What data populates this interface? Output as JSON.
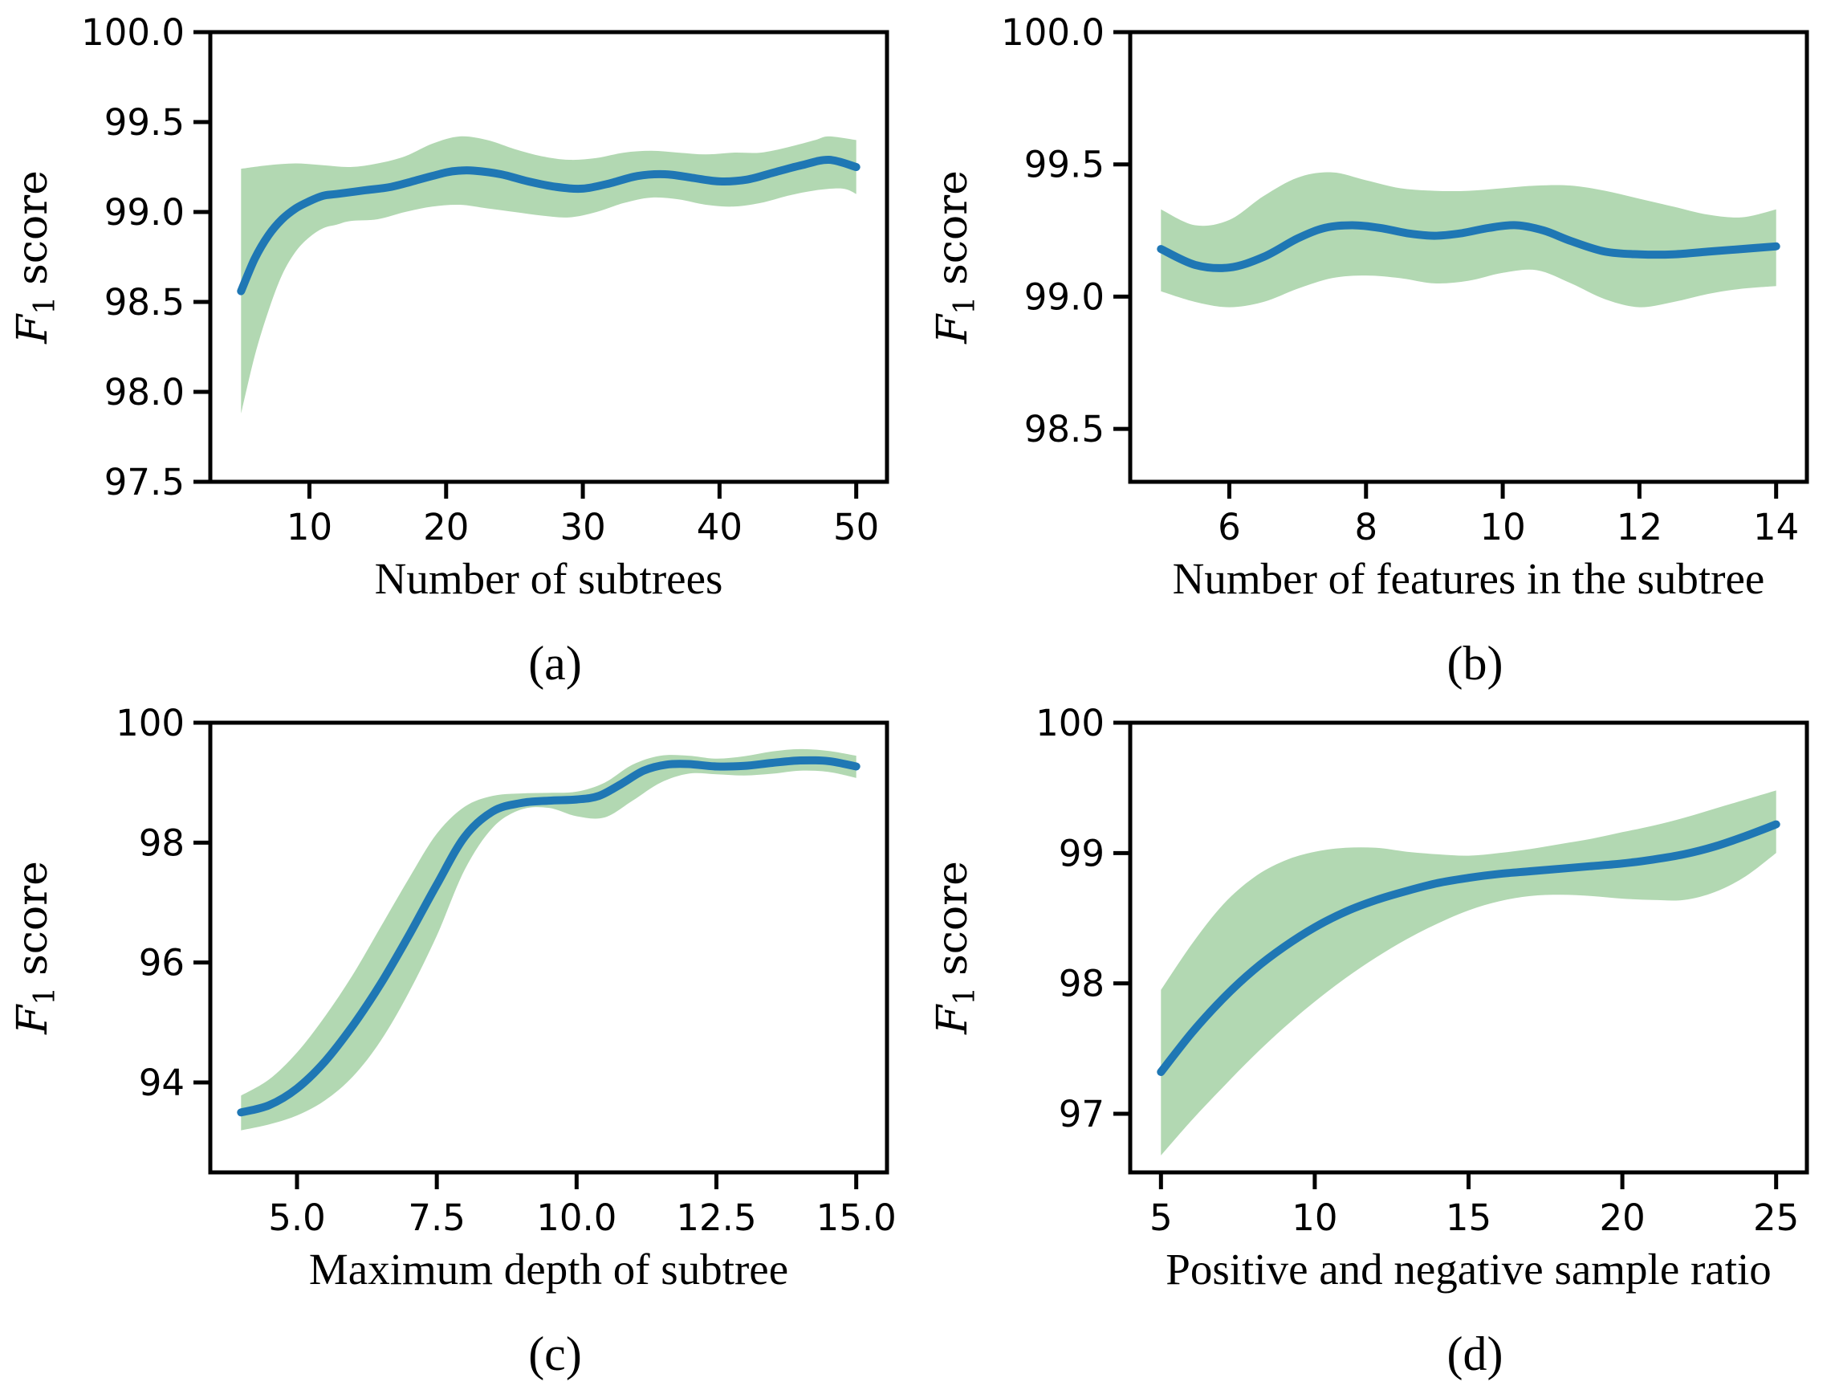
{
  "styles": {
    "line_color": "#1f77b4",
    "band_color": "#b2d8b2",
    "axis_color": "#000000",
    "background": "#ffffff"
  },
  "ylabel_parts": {
    "f": "F",
    "sub": "1",
    "rest": "score"
  },
  "chart_data": [
    {
      "type": "line",
      "panel": "a",
      "caption": "(a)",
      "xlabel": "Number of subtrees",
      "ylabel": "F1 score",
      "legend": "none",
      "grid": false,
      "xlim": [
        2.75,
        52.25
      ],
      "ylim": [
        97.5,
        100.0
      ],
      "xticks": [
        {
          "v": 10,
          "label": "10"
        },
        {
          "v": 20,
          "label": "20"
        },
        {
          "v": 30,
          "label": "30"
        },
        {
          "v": 40,
          "label": "40"
        },
        {
          "v": 50,
          "label": "50"
        }
      ],
      "yticks": [
        {
          "v": 100.0,
          "label": "100.0"
        },
        {
          "v": 99.5,
          "label": "99.5"
        },
        {
          "v": 99.0,
          "label": "99.0"
        },
        {
          "v": 98.5,
          "label": "98.5"
        },
        {
          "v": 98.0,
          "label": "98.0"
        },
        {
          "v": 97.5,
          "label": "97.5"
        }
      ],
      "line": {
        "x": [
          5,
          6,
          7,
          8,
          9,
          10,
          11,
          12,
          14,
          16,
          18,
          20,
          21,
          22,
          24,
          26,
          28,
          30,
          32,
          34,
          36,
          38,
          40,
          42,
          44,
          46,
          48,
          50
        ],
        "y": [
          98.56,
          98.74,
          98.87,
          98.96,
          99.02,
          99.06,
          99.09,
          99.1,
          99.12,
          99.14,
          99.18,
          99.22,
          99.23,
          99.23,
          99.21,
          99.17,
          99.14,
          99.13,
          99.16,
          99.2,
          99.21,
          99.19,
          99.17,
          99.18,
          99.22,
          99.26,
          99.29,
          99.25
        ]
      },
      "band_upper": {
        "x": [
          5,
          7,
          9,
          11,
          13,
          15,
          17,
          19,
          21,
          23,
          25,
          27,
          29,
          31,
          33,
          35,
          37,
          39,
          41,
          43,
          45,
          47,
          48,
          50
        ],
        "y": [
          99.24,
          99.26,
          99.27,
          99.26,
          99.25,
          99.27,
          99.31,
          99.38,
          99.42,
          99.4,
          99.35,
          99.31,
          99.29,
          99.3,
          99.33,
          99.34,
          99.33,
          99.32,
          99.33,
          99.33,
          99.36,
          99.4,
          99.42,
          99.4
        ]
      },
      "band_lower": {
        "x": [
          5,
          6,
          7,
          8,
          9,
          10,
          11,
          12,
          13,
          15,
          17,
          19,
          21,
          23,
          25,
          27,
          29,
          31,
          33,
          35,
          37,
          39,
          41,
          43,
          45,
          47,
          49,
          50
        ],
        "y": [
          97.88,
          98.2,
          98.45,
          98.65,
          98.78,
          98.86,
          98.91,
          98.93,
          98.95,
          98.96,
          99.0,
          99.03,
          99.04,
          99.02,
          99.0,
          98.98,
          98.97,
          99.0,
          99.05,
          99.08,
          99.07,
          99.04,
          99.03,
          99.05,
          99.09,
          99.12,
          99.13,
          99.1
        ]
      }
    },
    {
      "type": "line",
      "panel": "b",
      "caption": "(b)",
      "xlabel": "Number of features in the subtree",
      "ylabel": "F1 score",
      "legend": "none",
      "grid": false,
      "xlim": [
        4.55,
        14.45
      ],
      "ylim": [
        98.3,
        100.0
      ],
      "xticks": [
        {
          "v": 6,
          "label": "6"
        },
        {
          "v": 8,
          "label": "8"
        },
        {
          "v": 10,
          "label": "10"
        },
        {
          "v": 12,
          "label": "12"
        },
        {
          "v": 14,
          "label": "14"
        }
      ],
      "yticks": [
        {
          "v": 100.0,
          "label": "100.0"
        },
        {
          "v": 99.5,
          "label": "99.5"
        },
        {
          "v": 99.0,
          "label": "99.0"
        },
        {
          "v": 98.5,
          "label": "98.5"
        }
      ],
      "line": {
        "x": [
          5,
          5.5,
          6,
          6.5,
          7,
          7.4,
          7.8,
          8.2,
          8.6,
          9,
          9.4,
          9.8,
          10.2,
          10.6,
          11,
          11.5,
          12,
          12.5,
          13,
          13.5,
          14
        ],
        "y": [
          99.18,
          99.12,
          99.11,
          99.15,
          99.22,
          99.26,
          99.27,
          99.26,
          99.24,
          99.23,
          99.24,
          99.26,
          99.27,
          99.25,
          99.21,
          99.17,
          99.16,
          99.16,
          99.17,
          99.18,
          99.19
        ]
      },
      "band_upper": {
        "x": [
          5,
          5.5,
          6,
          6.5,
          7,
          7.5,
          8,
          8.5,
          9,
          9.5,
          10,
          10.5,
          11,
          11.5,
          12,
          12.5,
          13,
          13.5,
          14
        ],
        "y": [
          99.33,
          99.27,
          99.29,
          99.38,
          99.45,
          99.47,
          99.44,
          99.41,
          99.4,
          99.4,
          99.41,
          99.42,
          99.42,
          99.4,
          99.37,
          99.34,
          99.31,
          99.3,
          99.33
        ]
      },
      "band_lower": {
        "x": [
          5,
          5.5,
          6,
          6.5,
          7,
          7.5,
          8,
          8.5,
          9,
          9.5,
          10,
          10.5,
          11,
          11.5,
          12,
          12.5,
          13,
          13.5,
          14
        ],
        "y": [
          99.02,
          98.98,
          98.96,
          98.98,
          99.03,
          99.07,
          99.08,
          99.07,
          99.05,
          99.06,
          99.09,
          99.1,
          99.05,
          98.99,
          98.96,
          98.98,
          99.01,
          99.03,
          99.04
        ]
      }
    },
    {
      "type": "line",
      "panel": "c",
      "caption": "(c)",
      "xlabel": "Maximum depth of subtree",
      "ylabel": "F1 score",
      "legend": "none",
      "grid": false,
      "xlim": [
        3.45,
        15.55
      ],
      "ylim": [
        92.5,
        100.0
      ],
      "xticks": [
        {
          "v": 5,
          "label": "5.0"
        },
        {
          "v": 7.5,
          "label": "7.5"
        },
        {
          "v": 10,
          "label": "10.0"
        },
        {
          "v": 12.5,
          "label": "12.5"
        },
        {
          "v": 15,
          "label": "15.0"
        }
      ],
      "yticks": [
        {
          "v": 100,
          "label": "100"
        },
        {
          "v": 98,
          "label": "98"
        },
        {
          "v": 96,
          "label": "96"
        },
        {
          "v": 94,
          "label": "94"
        }
      ],
      "line": {
        "x": [
          4,
          4.5,
          5,
          5.5,
          6,
          6.5,
          7,
          7.5,
          8,
          8.5,
          9,
          9.5,
          10,
          10.4,
          10.8,
          11.2,
          11.6,
          12,
          12.5,
          13,
          13.5,
          14,
          14.5,
          15
        ],
        "y": [
          93.5,
          93.62,
          93.9,
          94.35,
          94.95,
          95.65,
          96.45,
          97.3,
          98.1,
          98.52,
          98.66,
          98.7,
          98.72,
          98.78,
          98.98,
          99.2,
          99.3,
          99.31,
          99.27,
          99.28,
          99.33,
          99.37,
          99.36,
          99.27
        ]
      },
      "band_upper": {
        "x": [
          4,
          4.5,
          5,
          5.5,
          6,
          6.5,
          7,
          7.5,
          8,
          8.5,
          9,
          9.5,
          10,
          10.5,
          11,
          11.5,
          12,
          12.5,
          13,
          13.5,
          14,
          14.5,
          15
        ],
        "y": [
          93.78,
          94.05,
          94.5,
          95.1,
          95.8,
          96.6,
          97.4,
          98.15,
          98.6,
          98.78,
          98.82,
          98.83,
          98.85,
          99.0,
          99.3,
          99.45,
          99.45,
          99.4,
          99.44,
          99.52,
          99.56,
          99.53,
          99.45
        ]
      },
      "band_lower": {
        "x": [
          4,
          4.5,
          5,
          5.5,
          6,
          6.5,
          7,
          7.5,
          8,
          8.5,
          9,
          9.5,
          10,
          10.5,
          11,
          11.5,
          12,
          12.5,
          13,
          13.5,
          14,
          14.5,
          15
        ],
        "y": [
          93.2,
          93.3,
          93.45,
          93.7,
          94.1,
          94.7,
          95.5,
          96.45,
          97.55,
          98.25,
          98.55,
          98.58,
          98.44,
          98.42,
          98.7,
          99.0,
          99.15,
          99.14,
          99.12,
          99.15,
          99.2,
          99.18,
          99.08
        ]
      }
    },
    {
      "type": "line",
      "panel": "d",
      "caption": "(d)",
      "xlabel": "Positive and negative sample ratio",
      "ylabel": "F1 score",
      "legend": "none",
      "grid": false,
      "xlim": [
        4.0,
        26.0
      ],
      "ylim": [
        96.55,
        100.0
      ],
      "xticks": [
        {
          "v": 5,
          "label": "5"
        },
        {
          "v": 10,
          "label": "10"
        },
        {
          "v": 15,
          "label": "15"
        },
        {
          "v": 20,
          "label": "20"
        },
        {
          "v": 25,
          "label": "25"
        }
      ],
      "yticks": [
        {
          "v": 100,
          "label": "100"
        },
        {
          "v": 99,
          "label": "99"
        },
        {
          "v": 98,
          "label": "98"
        },
        {
          "v": 97,
          "label": "97"
        }
      ],
      "line": {
        "x": [
          5,
          6,
          7,
          8,
          9,
          10,
          11,
          12,
          13,
          14,
          15,
          16,
          17,
          18,
          19,
          20,
          21,
          22,
          23,
          24,
          25
        ],
        "y": [
          97.32,
          97.62,
          97.88,
          98.1,
          98.28,
          98.43,
          98.55,
          98.64,
          98.71,
          98.77,
          98.81,
          98.84,
          98.86,
          98.88,
          98.9,
          98.92,
          98.95,
          98.99,
          99.05,
          99.13,
          99.22
        ]
      },
      "band_upper": {
        "x": [
          5,
          6,
          7,
          8,
          9,
          10,
          11,
          12,
          13,
          14,
          15,
          16,
          17,
          18,
          19,
          20,
          21,
          22,
          23,
          24,
          25
        ],
        "y": [
          97.95,
          98.3,
          98.6,
          98.81,
          98.94,
          99.01,
          99.04,
          99.04,
          99.01,
          98.99,
          98.98,
          99.0,
          99.03,
          99.07,
          99.11,
          99.16,
          99.21,
          99.27,
          99.34,
          99.41,
          99.48
        ]
      },
      "band_lower": {
        "x": [
          5,
          6,
          7,
          8,
          9,
          10,
          11,
          12,
          13,
          14,
          15,
          16,
          17,
          18,
          19,
          20,
          21,
          22,
          23,
          24,
          25
        ],
        "y": [
          96.68,
          96.95,
          97.2,
          97.44,
          97.66,
          97.86,
          98.04,
          98.2,
          98.34,
          98.46,
          98.56,
          98.63,
          98.67,
          98.68,
          98.67,
          98.65,
          98.64,
          98.64,
          98.7,
          98.82,
          99.0
        ]
      }
    }
  ]
}
